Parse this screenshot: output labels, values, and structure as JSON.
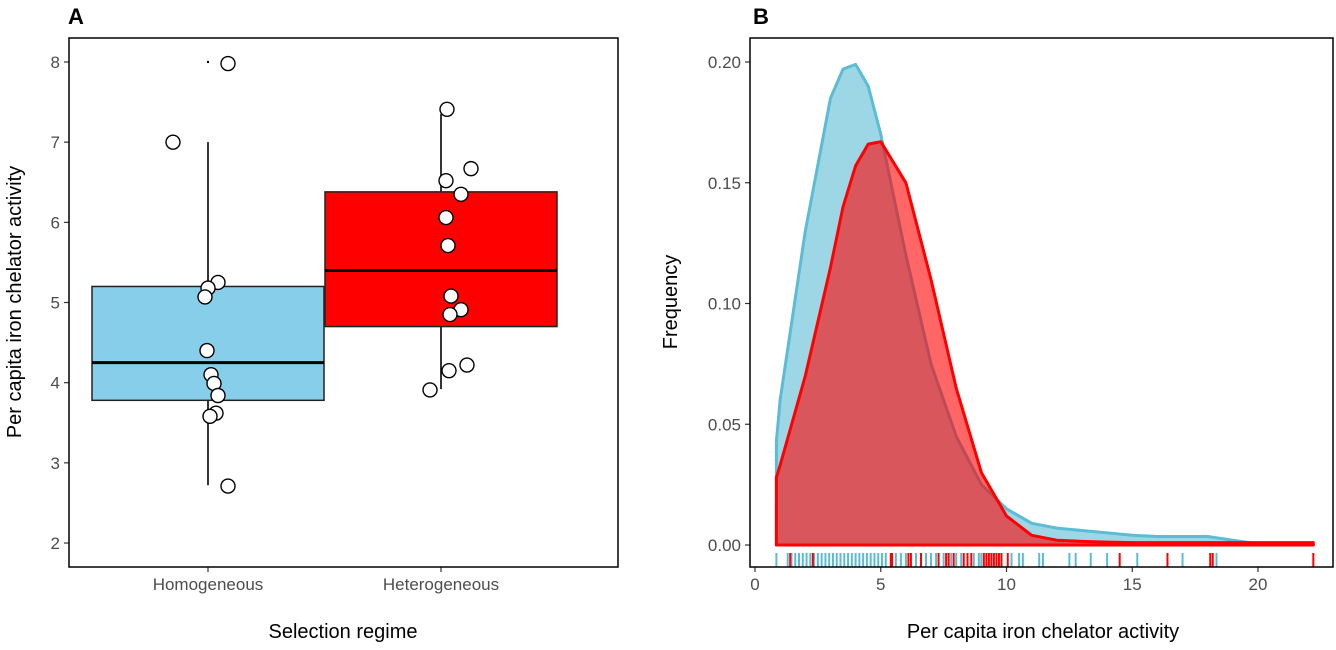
{
  "chart_data": [
    {
      "panel_label": "A",
      "type": "box",
      "xlabel": "Selection regime",
      "ylabel": "Per capita iron chelator activity",
      "ylim": [
        1.7,
        8.3
      ],
      "yticks": [
        "2",
        "3",
        "4",
        "5",
        "6",
        "7",
        "8"
      ],
      "grid": false,
      "groups": [
        {
          "category": "Homogeneous",
          "color": "#87ceeb",
          "q1": 3.78,
          "median": 4.25,
          "q3": 5.2,
          "whisker_low": 2.72,
          "whisker_high": 7.0,
          "outliers": [
            8.0
          ],
          "points": [
            7.98,
            7.0,
            5.25,
            5.18,
            5.07,
            4.4,
            4.1,
            3.99,
            3.84,
            3.62,
            3.58,
            2.71
          ]
        },
        {
          "category": "Heterogeneous",
          "color": "#ff0000",
          "q1": 4.7,
          "median": 5.4,
          "q3": 6.38,
          "whisker_low": 3.92,
          "whisker_high": 7.35,
          "outliers": [],
          "points": [
            7.41,
            6.67,
            6.52,
            6.35,
            6.06,
            5.71,
            5.08,
            4.91,
            4.85,
            4.22,
            4.15,
            3.91
          ]
        }
      ]
    },
    {
      "panel_label": "B",
      "type": "area",
      "xlabel": "Per capita iron chelator activity",
      "ylabel": "Frequency",
      "xlim": [
        -0.2,
        23.2
      ],
      "ylim": [
        -0.008,
        0.21
      ],
      "xticks": [
        "0",
        "5",
        "10",
        "15",
        "20"
      ],
      "yticks": [
        "0.00",
        "0.05",
        "0.10",
        "0.15",
        "0.20"
      ],
      "grid": false,
      "series": [
        {
          "color": "#5bbcd6",
          "x": [
            0.85,
            1,
            2,
            3,
            3.5,
            4,
            4.5,
            5,
            6,
            7,
            8,
            9,
            10,
            11,
            12,
            13,
            14,
            15,
            16,
            17,
            18,
            19,
            20,
            21,
            22.2
          ],
          "y": [
            0.043,
            0.06,
            0.13,
            0.185,
            0.197,
            0.199,
            0.19,
            0.17,
            0.12,
            0.075,
            0.045,
            0.025,
            0.015,
            0.009,
            0.007,
            0.006,
            0.005,
            0.004,
            0.0035,
            0.0035,
            0.0035,
            0.002,
            0.0005,
            0,
            0
          ],
          "rug": [
            0.85,
            1.3,
            1.45,
            1.6,
            1.75,
            1.9,
            2.05,
            2.2,
            2.35,
            2.5,
            2.65,
            2.8,
            2.95,
            3.1,
            3.25,
            3.4,
            3.55,
            3.7,
            3.85,
            4.0,
            4.15,
            4.3,
            4.45,
            4.6,
            4.75,
            4.9,
            5.05,
            5.2,
            5.6,
            5.8,
            6.0,
            6.4,
            6.8,
            7.0,
            7.2,
            7.5,
            7.8,
            8.0,
            8.2,
            8.7,
            8.9,
            9.0,
            9.8,
            10.2,
            10.5,
            10.65,
            11.3,
            11.45,
            12.5,
            12.75,
            13.35,
            14.0,
            15.2,
            17.0,
            18.35
          ]
        },
        {
          "color": "#ff0000",
          "x": [
            0.85,
            1,
            2,
            3,
            3.5,
            4,
            4.5,
            5,
            6,
            7,
            8,
            9,
            10,
            11,
            12,
            13,
            14,
            15,
            16,
            17,
            18,
            19,
            20,
            21,
            22.2
          ],
          "y": [
            0.028,
            0.033,
            0.07,
            0.115,
            0.14,
            0.157,
            0.166,
            0.167,
            0.15,
            0.11,
            0.065,
            0.03,
            0.012,
            0.004,
            0.002,
            0.0015,
            0.0012,
            0.001,
            0.001,
            0.001,
            0.001,
            0.001,
            0.001,
            0.001,
            0.001
          ],
          "rug": [
            1.4,
            2.3,
            5.4,
            5.45,
            6.1,
            6.2,
            6.6,
            7.3,
            7.6,
            7.7,
            7.9,
            8.3,
            8.45,
            8.6,
            9.1,
            9.2,
            9.3,
            9.4,
            9.5,
            9.6,
            9.7,
            9.8,
            10.05,
            14.5,
            16.4,
            18.1,
            18.2,
            22.2
          ]
        }
      ]
    }
  ]
}
